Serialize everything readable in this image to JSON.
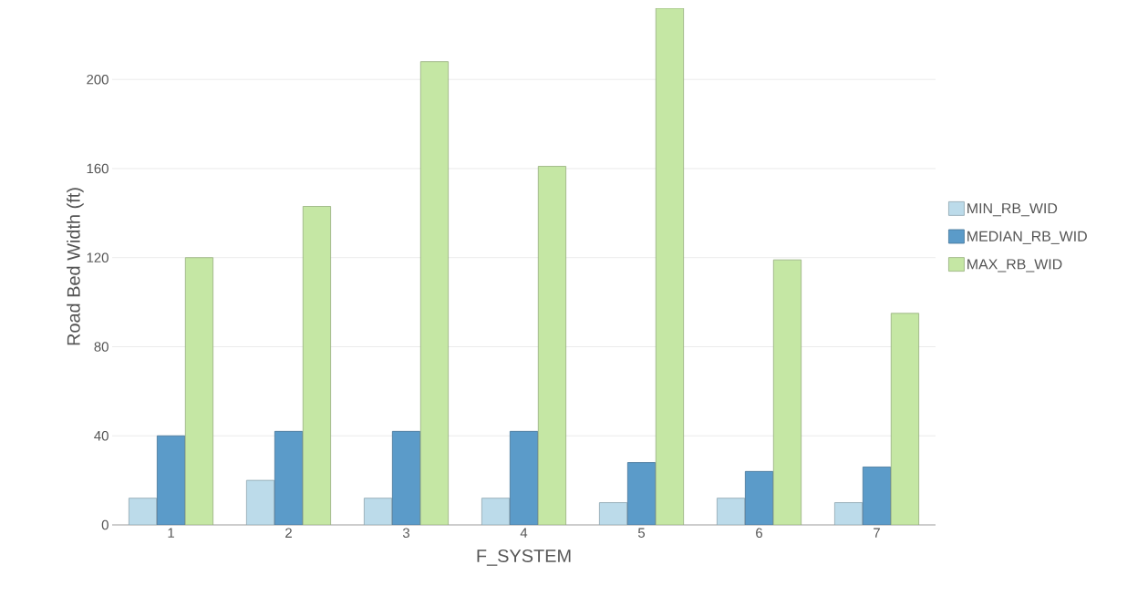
{
  "chart_data": {
    "type": "bar",
    "xlabel": "F_SYSTEM",
    "ylabel": "Road Bed Width (ft)",
    "categories": [
      "1",
      "2",
      "3",
      "4",
      "5",
      "6",
      "7"
    ],
    "series": [
      {
        "name": "MIN_RB_WID",
        "color": "#bcdbea",
        "values": [
          12,
          20,
          12,
          12,
          10,
          12,
          10
        ]
      },
      {
        "name": "MEDIAN_RB_WID",
        "color": "#5b9bc9",
        "values": [
          40,
          42,
          42,
          42,
          28,
          24,
          26
        ]
      },
      {
        "name": "MAX_RB_WID",
        "color": "#c5e7a4",
        "values": [
          120,
          143,
          208,
          161,
          232,
          119,
          95
        ]
      }
    ],
    "ylim": [
      0,
      232
    ],
    "yticks": [
      0,
      40,
      80,
      120,
      160,
      200
    ],
    "grid": "y",
    "legend": "right"
  }
}
